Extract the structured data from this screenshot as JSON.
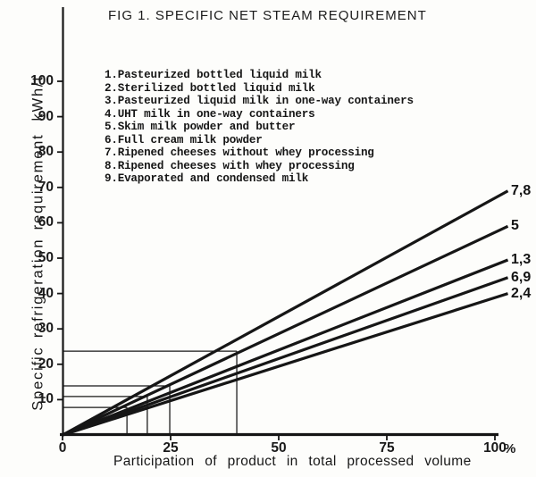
{
  "figure": {
    "kind": "scanned line chart figure",
    "ink_color": "#161616",
    "paper_color": "#fdfdfb"
  },
  "legend": {
    "items": [
      "1.Pasteurized bottled liquid milk",
      "2.Sterilized bottled liquid milk",
      "3.Pasteurized liquid milk in one-way containers",
      "4.UHT milk in one-way containers",
      "5.Skim milk powder and butter",
      "6.Full cream milk powder",
      "7.Ripened cheeses without whey processing",
      "8.Ripened cheeses with whey processing",
      "9.Evaporated and condensed milk"
    ]
  },
  "chart_data": {
    "type": "line",
    "title": "FIG 1. SPECIFIC NET STEAM REQUIREMENT",
    "xlabel": "Participation of product in total processed volume",
    "xunit": "%",
    "ylabel": "Specific refrigeration requirement",
    "yunit": "kWh/t",
    "x_axis": {
      "ticks": [
        0,
        25,
        50,
        75,
        100
      ],
      "range": [
        0,
        103
      ]
    },
    "y_axis": {
      "ticks": [
        10,
        20,
        30,
        40,
        50,
        60,
        70,
        80,
        90,
        100
      ],
      "range": [
        0,
        110
      ]
    },
    "grid": false,
    "legend_position": "upper-left text list",
    "series": [
      {
        "label": "7,8",
        "x": [
          0,
          103
        ],
        "y": [
          0,
          69
        ]
      },
      {
        "label": "5",
        "x": [
          0,
          103
        ],
        "y": [
          0,
          59
        ]
      },
      {
        "label": "1,3",
        "x": [
          0,
          103
        ],
        "y": [
          0,
          49.5
        ]
      },
      {
        "label": "6,9",
        "x": [
          0,
          103
        ],
        "y": [
          0,
          44.5
        ]
      },
      {
        "label": "2,4",
        "x": [
          0,
          103
        ],
        "y": [
          0,
          40
        ]
      }
    ],
    "reference_marks": [
      {
        "x": 40.3,
        "y": 23.7
      },
      {
        "x": 24.8,
        "y": 13.9
      },
      {
        "x": 19.6,
        "y": 10.9
      },
      {
        "x": 14.9,
        "y": 7.8
      }
    ]
  }
}
